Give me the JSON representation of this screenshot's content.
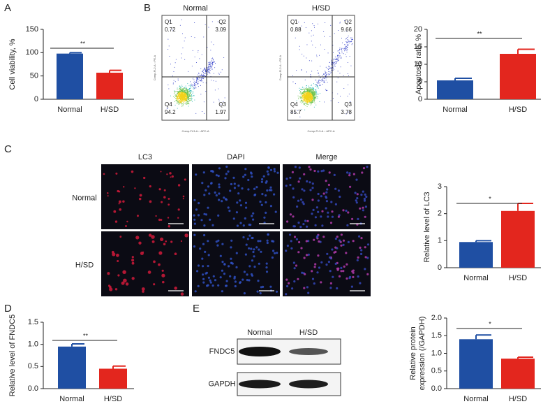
{
  "panels": [
    "A",
    "B",
    "C",
    "D",
    "E"
  ],
  "chart_data": [
    {
      "type": "bar",
      "y_label": "Cell viability, %",
      "categories": [
        "Normal",
        "H/SD"
      ],
      "values": [
        98,
        57
      ],
      "errors": [
        2,
        5
      ],
      "colors": [
        "#1f4fa3",
        "#e3261e"
      ],
      "ylim": [
        0,
        150
      ],
      "yticks": [
        0,
        50,
        100,
        150
      ],
      "annotation": "**"
    },
    {
      "type": "bar",
      "y_label": "Apoptosis rate, %",
      "categories": [
        "Normal",
        "H/SD"
      ],
      "values": [
        5.4,
        13
      ],
      "errors": [
        0.6,
        1.3
      ],
      "colors": [
        "#1f4fa3",
        "#e3261e"
      ],
      "ylim": [
        0,
        20
      ],
      "yticks": [
        0,
        5,
        10,
        15,
        20
      ],
      "annotation": "**"
    },
    {
      "type": "bar",
      "y_label": "Relative level of LC3",
      "categories": [
        "Normal",
        "H/SD"
      ],
      "values": [
        0.95,
        2.1
      ],
      "errors": [
        0.05,
        0.28
      ],
      "colors": [
        "#1f4fa3",
        "#e3261e"
      ],
      "ylim": [
        0,
        3
      ],
      "yticks": [
        0,
        1,
        2,
        3
      ],
      "annotation": "*"
    },
    {
      "type": "bar",
      "y_label": "Relative level of FNDC5",
      "categories": [
        "Normal",
        "H/SD"
      ],
      "values": [
        0.95,
        0.45
      ],
      "errors": [
        0.06,
        0.06
      ],
      "colors": [
        "#1f4fa3",
        "#e3261e"
      ],
      "ylim": [
        0,
        1.5
      ],
      "yticks": [
        {
          "value": 0,
          "label": "0.0"
        },
        0.5,
        {
          "value": 1,
          "label": "1.0"
        },
        1.5
      ],
      "annotation": "**"
    },
    {
      "type": "bar",
      "y_label": [
        "Relative protein",
        "expression (/GAPDH)"
      ],
      "categories": [
        "Normal",
        "H/SD"
      ],
      "values": [
        1.4,
        0.85
      ],
      "errors": [
        0.12,
        0.04
      ],
      "colors": [
        "#1f4fa3",
        "#e3261e"
      ],
      "ylim": [
        0,
        2
      ],
      "yticks": [
        {
          "value": 0,
          "label": "0.0"
        },
        0.5,
        {
          "value": 1,
          "label": "1.0"
        },
        1.5,
        {
          "value": 2,
          "label": "2.0"
        }
      ],
      "annotation": "*"
    }
  ],
  "flow": {
    "x_label": "Comp-FL3-A :: APC-A",
    "y_label": "Comp-FL2-A :: PE-A",
    "plots": [
      {
        "title": "Normal",
        "quadrants": [
          {
            "name": "Q1",
            "value": 0.72
          },
          {
            "name": "Q2",
            "value": 3.09
          },
          {
            "name": "Q3",
            "value": 1.97
          },
          {
            "name": "Q4",
            "value": 94.2
          }
        ]
      },
      {
        "title": "H/SD",
        "quadrants": [
          {
            "name": "Q1",
            "value": 0.88
          },
          {
            "name": "Q2",
            "value": 9.66
          },
          {
            "name": "Q3",
            "value": 3.78
          },
          {
            "name": "Q4",
            "value": 85.7
          }
        ]
      }
    ]
  },
  "microscopy": {
    "columns": [
      "LC3",
      "DAPI",
      "Merge"
    ],
    "rows": [
      "Normal",
      "H/SD"
    ]
  },
  "blot": {
    "lanes": [
      "Normal",
      "H/SD"
    ],
    "bands": [
      "FNDC5",
      "GAPDH"
    ]
  }
}
